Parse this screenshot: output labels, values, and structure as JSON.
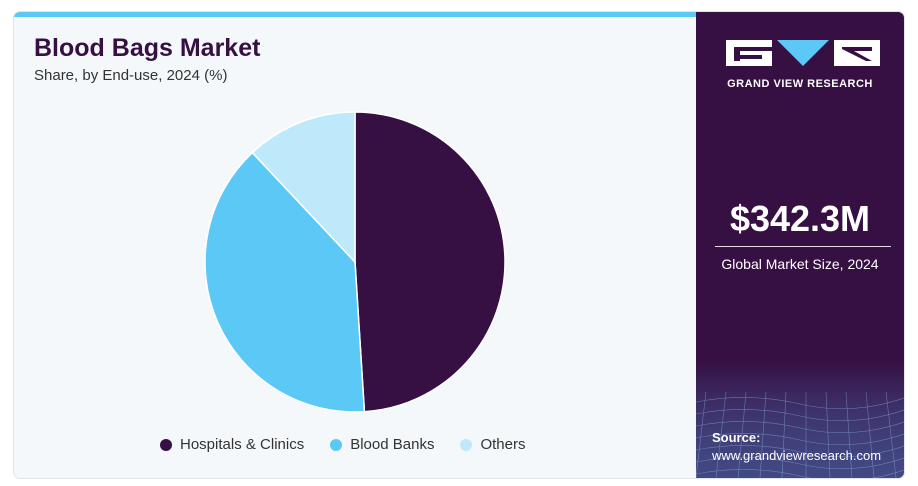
{
  "title": "Blood Bags Market",
  "subtitle": "Share, by End-use, 2024 (%)",
  "brand": {
    "name": "GRAND VIEW RESEARCH"
  },
  "market": {
    "value": "$342.3M",
    "label": "Global Market Size, 2024"
  },
  "source": {
    "label": "Source:",
    "url": "www.grandviewresearch.com"
  },
  "colors": {
    "accent_bar": "#5bc8f5",
    "panel": "#361043",
    "background": "#f4f8fb"
  },
  "chart_data": {
    "type": "pie",
    "title": "Blood Bags Market",
    "subtitle": "Share, by End-use, 2024 (%)",
    "categories": [
      "Hospitals & Clinics",
      "Blood Banks",
      "Others"
    ],
    "values": [
      49,
      39,
      12
    ],
    "colors": [
      "#361043",
      "#5bc8f5",
      "#bde9fb"
    ],
    "legend_position": "bottom",
    "start_angle_deg": 0,
    "direction": "clockwise"
  }
}
